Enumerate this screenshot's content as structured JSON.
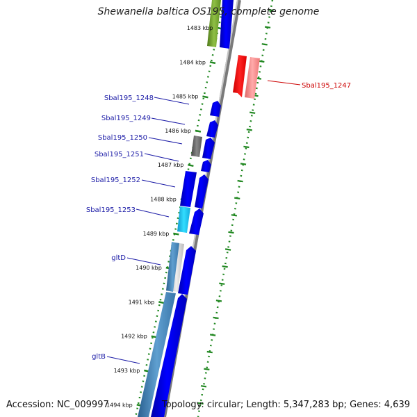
{
  "title": "Shewanella baltica OS195, complete genome",
  "ticks": [
    "1483 kbp",
    "1484 kbp",
    "1485 kbp",
    "1486 kbp",
    "1487 kbp",
    "1488 kbp",
    "1489 kbp",
    "1490 kbp",
    "1491 kbp",
    "1492 kbp",
    "1493 kbp",
    "1494 kbp"
  ],
  "gene_labels": [
    {
      "text": "Sbal195_1248",
      "color": "#1a1aa6"
    },
    {
      "text": "Sbal195_1249",
      "color": "#1a1aa6"
    },
    {
      "text": "Sbal195_1250",
      "color": "#1a1aa6"
    },
    {
      "text": "Sbal195_1251",
      "color": "#1a1aa6"
    },
    {
      "text": "Sbal195_1252",
      "color": "#1a1aa6"
    },
    {
      "text": "Sbal195_1253",
      "color": "#1a1aa6"
    },
    {
      "text": "gltD",
      "color": "#1a1aa6"
    },
    {
      "text": "gltB",
      "color": "#1a1aa6"
    },
    {
      "text": "Sbal195_1247",
      "color": "#cc0000"
    }
  ],
  "footer": {
    "accession": "Accession: NC_009997",
    "topology": "Topology: circular; Length: 5,347,283 bp; Genes: 4,639"
  },
  "colors": {
    "forward_gene": "#0000ee",
    "reverse_gene": "#ee0000",
    "backbone": "#909090",
    "tick": "#228822"
  }
}
